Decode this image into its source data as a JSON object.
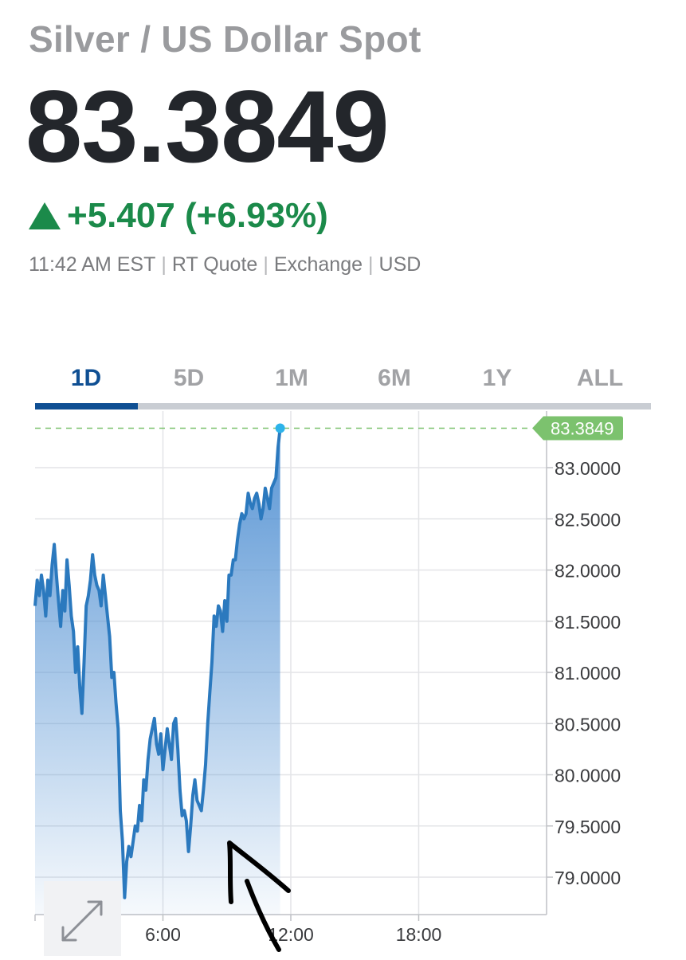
{
  "header": {
    "title": "Silver / US Dollar Spot",
    "price": "83.3849",
    "change": "+5.407 (+6.93%)",
    "change_direction": "up",
    "meta": [
      "11:42 AM EST",
      "RT Quote",
      "Exchange",
      "USD"
    ]
  },
  "tabs": [
    {
      "label": "1D",
      "active": true
    },
    {
      "label": "5D",
      "active": false
    },
    {
      "label": "1M",
      "active": false
    },
    {
      "label": "6M",
      "active": false
    },
    {
      "label": "1Y",
      "active": false
    },
    {
      "label": "ALL",
      "active": false
    }
  ],
  "colors": {
    "line": "#2b79be",
    "positive": "#1b8a4a",
    "current_price_label": "#7cc26e",
    "current_point": "#2db3ea",
    "active_tab": "#0f4f93"
  },
  "controls": {
    "expand_icon": "expand-arrows-icon"
  },
  "chart_data": {
    "type": "area",
    "current_value": 83.3849,
    "current_value_label": "83.3849",
    "ylim": [
      78.7,
      83.4
    ],
    "y_ticks": [
      79.0,
      79.5,
      80.0,
      80.5,
      81.0,
      81.5,
      82.0,
      82.5,
      83.0
    ],
    "y_tick_labels": [
      "79.0000",
      "79.5000",
      "80.0000",
      "80.5000",
      "81.0000",
      "81.5000",
      "82.0000",
      "82.5000",
      "83.0000"
    ],
    "xlim": [
      0,
      24
    ],
    "x_ticks": [
      6,
      12,
      18
    ],
    "x_tick_labels": [
      "6:00",
      "12:00",
      "18:00"
    ],
    "grid": true,
    "series": [
      {
        "x": [
          0,
          0.1,
          0.2,
          0.3,
          0.4,
          0.5,
          0.6,
          0.7,
          0.8,
          0.9,
          1.0,
          1.1,
          1.2,
          1.3,
          1.4,
          1.5,
          1.6,
          1.7,
          1.8,
          1.9,
          2.0,
          2.1,
          2.2,
          2.3,
          2.4,
          2.5,
          2.6,
          2.7,
          2.8,
          2.9,
          3.0,
          3.1,
          3.2,
          3.3,
          3.4,
          3.5,
          3.6,
          3.7,
          3.8,
          3.9,
          4.0,
          4.1,
          4.2,
          4.3,
          4.4,
          4.5,
          4.6,
          4.7,
          4.8,
          4.9,
          5.0,
          5.1,
          5.2,
          5.3,
          5.4,
          5.5,
          5.6,
          5.7,
          5.8,
          5.9,
          6.0,
          6.1,
          6.2,
          6.3,
          6.4,
          6.5,
          6.6,
          6.7,
          6.8,
          6.9,
          7.0,
          7.1,
          7.2,
          7.3,
          7.4,
          7.5,
          7.6,
          7.7,
          7.8,
          7.9,
          8.0,
          8.1,
          8.2,
          8.3,
          8.4,
          8.5,
          8.6,
          8.7,
          8.8,
          8.9,
          9.0,
          9.1,
          9.2,
          9.3,
          9.4,
          9.5,
          9.6,
          9.7,
          9.8,
          9.9,
          10.0,
          10.1,
          10.2,
          10.3,
          10.4,
          10.5,
          10.6,
          10.7,
          10.8,
          10.9,
          11.0,
          11.1,
          11.2,
          11.3,
          11.4,
          11.5
        ],
        "y": [
          81.65,
          81.9,
          81.75,
          81.95,
          81.8,
          81.55,
          81.9,
          81.75,
          82.05,
          82.25,
          81.95,
          81.7,
          81.45,
          81.8,
          81.6,
          82.1,
          81.85,
          81.55,
          81.4,
          81.0,
          81.25,
          80.85,
          80.6,
          81.1,
          81.65,
          81.75,
          81.9,
          82.15,
          81.95,
          81.85,
          81.8,
          81.65,
          81.95,
          81.75,
          81.55,
          81.35,
          80.95,
          81.0,
          80.7,
          80.45,
          79.65,
          79.35,
          78.8,
          79.15,
          79.3,
          79.2,
          79.35,
          79.5,
          79.45,
          79.7,
          79.55,
          79.95,
          79.85,
          80.15,
          80.35,
          80.45,
          80.55,
          80.3,
          80.2,
          80.4,
          80.05,
          80.25,
          80.45,
          80.3,
          80.15,
          80.5,
          80.55,
          80.25,
          79.85,
          79.6,
          79.65,
          79.55,
          79.25,
          79.5,
          79.8,
          79.95,
          79.75,
          79.7,
          79.65,
          79.85,
          80.1,
          80.5,
          80.8,
          81.1,
          81.55,
          81.45,
          81.65,
          81.6,
          81.4,
          81.7,
          81.5,
          81.95,
          81.95,
          82.1,
          82.1,
          82.3,
          82.45,
          82.55,
          82.5,
          82.55,
          82.75,
          82.65,
          82.6,
          82.7,
          82.75,
          82.65,
          82.5,
          82.6,
          82.8,
          82.7,
          82.6,
          82.8,
          82.85,
          82.9,
          83.2,
          83.3849
        ]
      }
    ]
  }
}
